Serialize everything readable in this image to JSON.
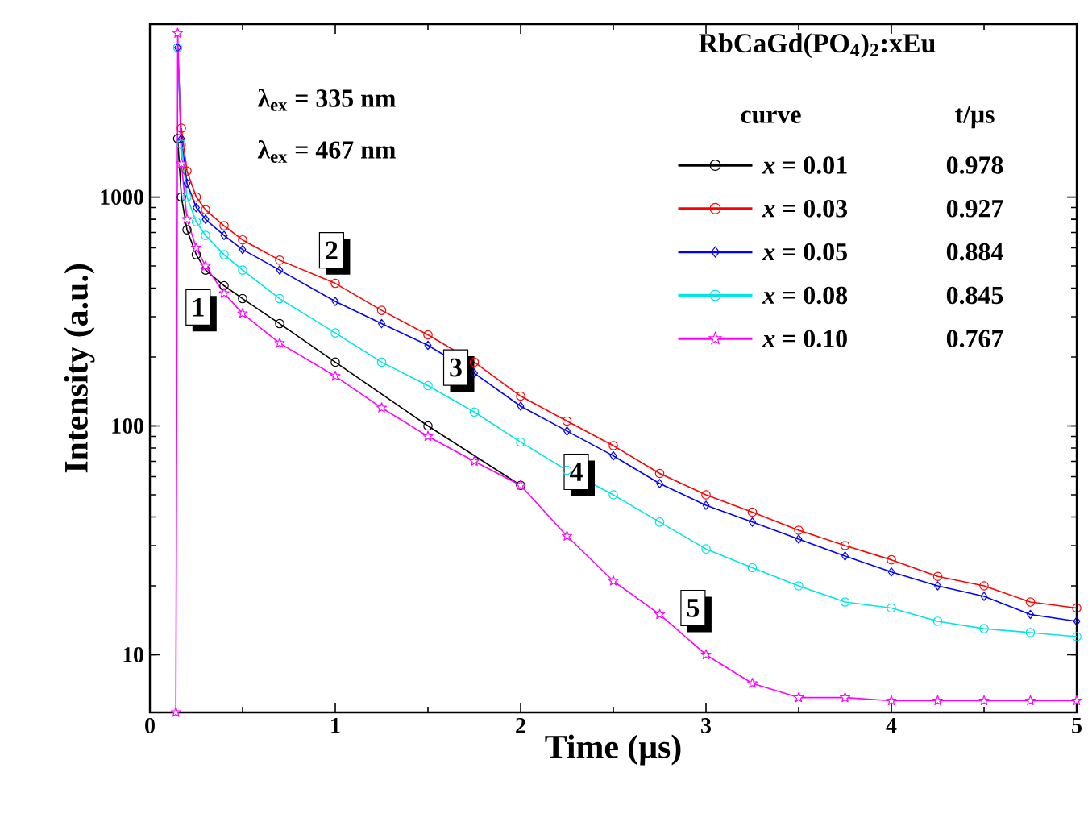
{
  "chart_data": {
    "type": "line",
    "title": "RbCaGd(PO$_{4}$)$_{2}$:xEu",
    "xlabel": "Time (μs)",
    "ylabel": "Intensity (a.u.)",
    "legend_title": "curve",
    "log": "y",
    "xlim": [
      0,
      5
    ],
    "ylim": [
      5.6,
      5700
    ],
    "xticks": [
      0,
      1,
      2,
      3,
      4,
      5
    ],
    "yticks": [
      10,
      100,
      1000
    ],
    "legend": "top right",
    "line_style": "solid",
    "annotations": [
      "λ$_{ex}$ = 335 nm",
      "λ$_{ex}$ = 467 nm",
      "t/μs",
      "0.978",
      "0.927",
      "0.884",
      "0.845",
      "0.767",
      {
        "text": "1",
        "x": 0.26,
        "y": 330
      },
      {
        "text": "2",
        "x": 0.98,
        "y": 585
      },
      {
        "text": "3",
        "x": 1.65,
        "y": 180
      },
      {
        "text": "4",
        "x": 2.3,
        "y": 63
      },
      {
        "text": "5",
        "x": 2.93,
        "y": 16
      }
    ],
    "series": [
      {
        "name": "*x* = 0.01",
        "color": "#000000",
        "marker": "circle",
        "x": [
          0.15,
          0.17,
          0.2,
          0.25,
          0.3,
          0.4,
          0.5,
          0.7,
          1.0,
          1.5,
          2.0
        ],
        "values": [
          1800,
          1000,
          720,
          560,
          480,
          410,
          360,
          280,
          190,
          100,
          55
        ]
      },
      {
        "name": "*x* = 0.03",
        "color": "#ff0000",
        "marker": "circle",
        "x": [
          0.17,
          0.2,
          0.25,
          0.3,
          0.4,
          0.5,
          0.7,
          1.0,
          1.25,
          1.5,
          1.75,
          2.0,
          2.25,
          2.5,
          2.75,
          3.0,
          3.25,
          3.5,
          3.75,
          4.0,
          4.25,
          4.5,
          4.75,
          5.0
        ],
        "values": [
          2000,
          1300,
          1000,
          880,
          750,
          650,
          530,
          420,
          320,
          250,
          190,
          135,
          105,
          82,
          62,
          50,
          42,
          35,
          30,
          26,
          22,
          20,
          17,
          16
        ]
      },
      {
        "name": "*x* = 0.05",
        "color": "#0000ff",
        "marker": "diamond",
        "x": [
          0.15,
          0.17,
          0.2,
          0.25,
          0.3,
          0.4,
          0.5,
          0.7,
          1.0,
          1.25,
          1.5,
          1.75,
          2.0,
          2.25,
          2.5,
          2.75,
          3.0,
          3.25,
          3.5,
          3.75,
          4.0,
          4.25,
          4.5,
          4.75,
          5.0
        ],
        "values": [
          4500,
          1800,
          1150,
          900,
          800,
          680,
          590,
          480,
          350,
          280,
          225,
          170,
          122,
          95,
          74,
          56,
          45,
          38,
          32,
          27,
          23,
          20,
          18,
          15,
          14
        ]
      },
      {
        "name": "*x* = 0.08",
        "color": "#00e5e5",
        "marker": "circle",
        "x": [
          0.15,
          0.17,
          0.2,
          0.25,
          0.3,
          0.4,
          0.5,
          0.7,
          1.0,
          1.25,
          1.5,
          1.75,
          2.0,
          2.25,
          2.5,
          2.75,
          3.0,
          3.25,
          3.5,
          3.75,
          4.0,
          4.25,
          4.5,
          4.75,
          5.0
        ],
        "values": [
          4500,
          1700,
          1000,
          780,
          680,
          560,
          480,
          360,
          255,
          190,
          150,
          115,
          85,
          64,
          50,
          38,
          29,
          24,
          20,
          17,
          16,
          14,
          13,
          12.5,
          12
        ]
      },
      {
        "name": "*x* = 0.10",
        "color": "#ff00ff",
        "marker": "star",
        "x": [
          0.14,
          0.15,
          0.17,
          0.2,
          0.25,
          0.3,
          0.4,
          0.5,
          0.7,
          1.0,
          1.25,
          1.5,
          1.75,
          2.0,
          2.25,
          2.5,
          2.75,
          3.0,
          3.25,
          3.5,
          3.75,
          4.0,
          4.25,
          4.5,
          4.75,
          5.0
        ],
        "values": [
          5.6,
          5200,
          1400,
          800,
          600,
          500,
          380,
          310,
          230,
          165,
          120,
          90,
          70,
          55,
          33,
          21,
          15,
          10,
          7.5,
          6.5,
          6.5,
          6.3,
          6.3,
          6.3,
          6.3,
          6.3
        ]
      }
    ]
  }
}
